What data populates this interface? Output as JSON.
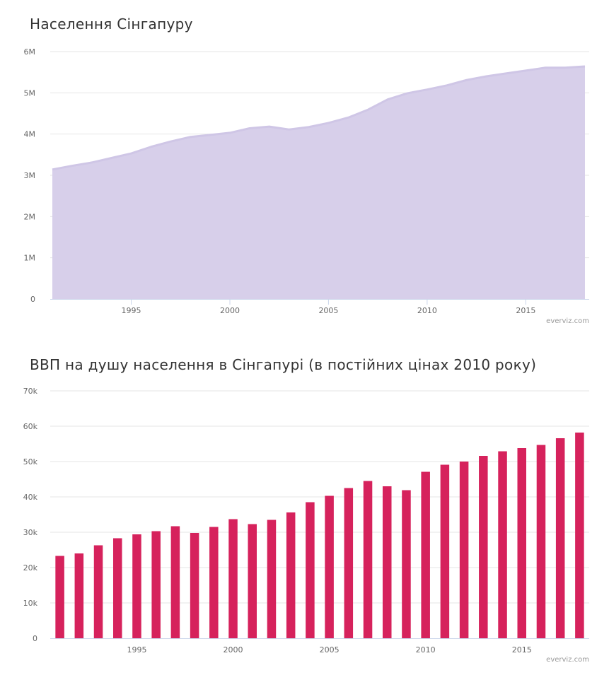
{
  "chart_data": [
    {
      "type": "area",
      "title": "Населення Сінгапуру",
      "credit": "everviz.com",
      "x": [
        1991,
        1992,
        1993,
        1994,
        1995,
        1996,
        1997,
        1998,
        1999,
        2000,
        2001,
        2002,
        2003,
        2004,
        2005,
        2006,
        2007,
        2008,
        2009,
        2010,
        2011,
        2012,
        2013,
        2014,
        2015,
        2016,
        2017,
        2018
      ],
      "values": [
        3140000,
        3230000,
        3310000,
        3420000,
        3530000,
        3690000,
        3820000,
        3930000,
        3980000,
        4030000,
        4140000,
        4180000,
        4110000,
        4170000,
        4270000,
        4400000,
        4590000,
        4840000,
        4990000,
        5080000,
        5180000,
        5310000,
        5400000,
        5470000,
        5540000,
        5610000,
        5610000,
        5640000
      ],
      "xlim": [
        1991,
        2018
      ],
      "ylim": [
        0,
        6000000
      ],
      "x_ticks": [
        1995,
        2000,
        2005,
        2010,
        2015
      ],
      "x_tick_labels": [
        "1995",
        "2000",
        "2005",
        "2010",
        "2015"
      ],
      "y_ticks": [
        0,
        1000000,
        2000000,
        3000000,
        4000000,
        5000000,
        6000000
      ],
      "y_tick_labels": [
        "0",
        "1M",
        "2M",
        "3M",
        "4M",
        "5M",
        "6M"
      ],
      "grid": true,
      "legend": "none",
      "colors": {
        "fill": "#d7cfea",
        "line": "#cfc6e6"
      }
    },
    {
      "type": "bar",
      "title": "ВВП на душу населення в Сінгапурі (в постійних цінах 2010 року)",
      "credit": "everviz.com",
      "x": [
        1991,
        1992,
        1993,
        1994,
        1995,
        1996,
        1997,
        1998,
        1999,
        2000,
        2001,
        2002,
        2003,
        2004,
        2005,
        2006,
        2007,
        2008,
        2009,
        2010,
        2011,
        2012,
        2013,
        2014,
        2015,
        2016,
        2017,
        2018
      ],
      "values": [
        23300,
        24000,
        26300,
        28300,
        29400,
        30300,
        31700,
        29800,
        31500,
        33700,
        32300,
        33500,
        35600,
        38500,
        40300,
        42500,
        44500,
        43000,
        41900,
        47100,
        49100,
        50000,
        51600,
        52900,
        53800,
        54700,
        56600,
        58200
      ],
      "xlim": [
        1990.5,
        2018.5
      ],
      "ylim": [
        0,
        70000
      ],
      "x_ticks": [
        1995,
        2000,
        2005,
        2010,
        2015
      ],
      "x_tick_labels": [
        "1995",
        "2000",
        "2005",
        "2010",
        "2015"
      ],
      "y_ticks": [
        0,
        10000,
        20000,
        30000,
        40000,
        50000,
        60000,
        70000
      ],
      "y_tick_labels": [
        "0",
        "10k",
        "20k",
        "30k",
        "40k",
        "50k",
        "60k",
        "70k"
      ],
      "grid": true,
      "legend": "none",
      "colors": {
        "bar": "#d6225c"
      }
    }
  ]
}
